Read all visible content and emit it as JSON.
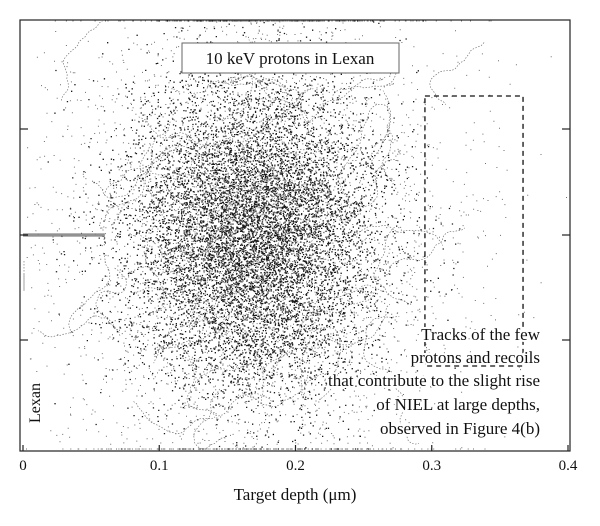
{
  "chart_data": {
    "type": "scatter",
    "title": "10 keV protons in Lexan",
    "xlabel": "Target depth (μm)",
    "xlim": [
      0,
      0.4
    ],
    "xticks": [
      "0",
      "0.1",
      "0.2",
      "0.3",
      "0.4"
    ],
    "material_label": "Lexan",
    "annotation": [
      "Tracks of the few",
      "protons and recoils",
      "that contribute to the slight rise",
      "of NIEL at large depths,",
      "observed in Figure 4(b)"
    ],
    "highlight_region_x": [
      0.295,
      0.367
    ],
    "track_cloud": {
      "beam_entry_x": 0.0,
      "core_center_x": 0.17,
      "max_depth_x": 0.37,
      "lateral_range": [
        -1,
        1
      ]
    },
    "grid": false,
    "legend": "none"
  }
}
